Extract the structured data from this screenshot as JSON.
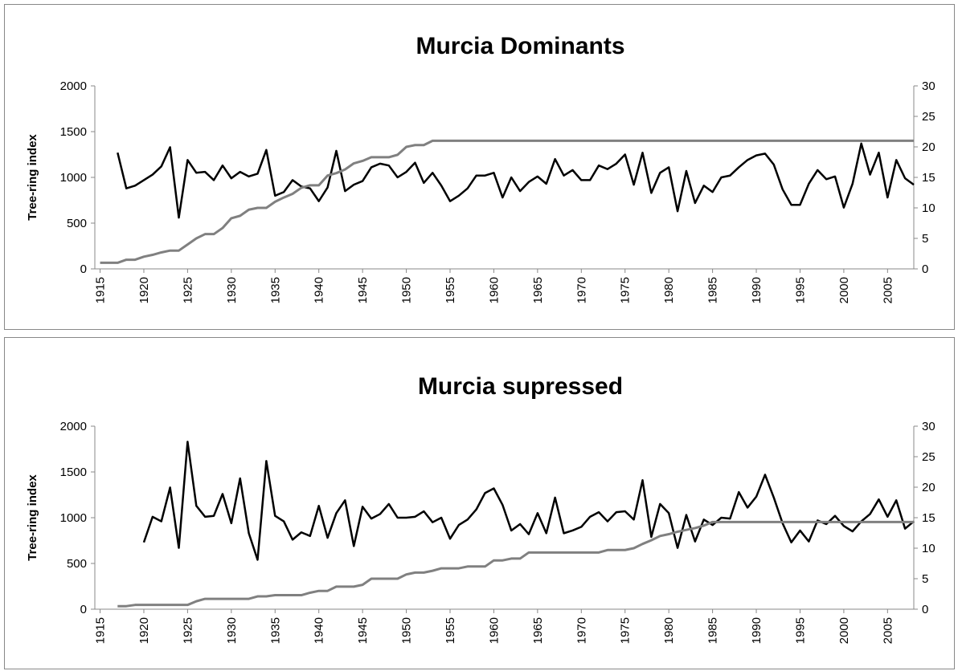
{
  "chart_data": [
    {
      "type": "line",
      "title": "Murcia Dominants",
      "ylabel": "Tree-ring index",
      "x": [
        1915,
        1916,
        1917,
        1918,
        1919,
        1920,
        1921,
        1922,
        1923,
        1924,
        1925,
        1926,
        1927,
        1928,
        1929,
        1930,
        1931,
        1932,
        1933,
        1934,
        1935,
        1936,
        1937,
        1938,
        1939,
        1940,
        1941,
        1942,
        1943,
        1944,
        1945,
        1946,
        1947,
        1948,
        1949,
        1950,
        1951,
        1952,
        1953,
        1954,
        1955,
        1956,
        1957,
        1958,
        1959,
        1960,
        1961,
        1962,
        1963,
        1964,
        1965,
        1966,
        1967,
        1968,
        1969,
        1970,
        1971,
        1972,
        1973,
        1974,
        1975,
        1976,
        1977,
        1978,
        1979,
        1980,
        1981,
        1982,
        1983,
        1984,
        1985,
        1986,
        1987,
        1988,
        1989,
        1990,
        1991,
        1992,
        1993,
        1994,
        1995,
        1996,
        1997,
        1998,
        1999,
        2000,
        2001,
        2002,
        2003,
        2004,
        2005,
        2006,
        2007,
        2008
      ],
      "xlim": [
        1914.4,
        2008
      ],
      "xticks": [
        1915,
        1920,
        1925,
        1930,
        1935,
        1940,
        1945,
        1950,
        1955,
        1960,
        1965,
        1970,
        1975,
        1980,
        1985,
        1990,
        1995,
        2000,
        2005
      ],
      "ylim": [
        0,
        2000
      ],
      "yticks": [
        0,
        500,
        1000,
        1500,
        2000
      ],
      "y2lim": [
        0,
        30
      ],
      "y2ticks": [
        0,
        5,
        10,
        15,
        20,
        25,
        30
      ],
      "series": [
        {
          "color": "#000000",
          "values": [
            null,
            null,
            1270,
            880,
            910,
            970,
            1030,
            1120,
            1330,
            560,
            1190,
            1050,
            1060,
            970,
            1130,
            990,
            1060,
            1010,
            1040,
            1300,
            800,
            840,
            970,
            900,
            880,
            740,
            890,
            1290,
            850,
            920,
            960,
            1110,
            1150,
            1130,
            1000,
            1060,
            1160,
            940,
            1050,
            910,
            740,
            800,
            880,
            1020,
            1020,
            1050,
            780,
            1000,
            850,
            950,
            1010,
            930,
            1200,
            1020,
            1080,
            970,
            970,
            1130,
            1090,
            1150,
            1250,
            920,
            1270,
            830,
            1050,
            1110,
            630,
            1070,
            720,
            910,
            840,
            1000,
            1020,
            1110,
            1190,
            1240,
            1260,
            1140,
            870,
            700,
            700,
            930,
            1080,
            980,
            1010,
            670,
            930,
            1370,
            1030,
            1270,
            780,
            1190,
            990,
            920
          ]
        },
        {
          "color": "#808080",
          "axis": "y2",
          "values": [
            1,
            1,
            1,
            1.5,
            1.5,
            2,
            2.3,
            2.7,
            3,
            3,
            4,
            5,
            5.7,
            5.7,
            6.7,
            8.3,
            8.7,
            9.7,
            10,
            10,
            11,
            11.7,
            12.3,
            13.3,
            13.7,
            13.7,
            15.3,
            15.7,
            16.3,
            17.3,
            17.7,
            18.3,
            18.3,
            18.3,
            18.7,
            20,
            20.3,
            20.3,
            21,
            21,
            21,
            21,
            21,
            21,
            21,
            21,
            21,
            21,
            21,
            21,
            21,
            21,
            21,
            21,
            21,
            21,
            21,
            21,
            21,
            21,
            21,
            21,
            21,
            21,
            21,
            21,
            21,
            21,
            21,
            21,
            21,
            21,
            21,
            21,
            21,
            21,
            21,
            21,
            21,
            21,
            21,
            21,
            21,
            21,
            21,
            21,
            21,
            21,
            21,
            21,
            21,
            21,
            21,
            21
          ]
        }
      ]
    },
    {
      "type": "line",
      "title": "Murcia supressed",
      "ylabel": "Tree-ring index",
      "x": [
        1915,
        1916,
        1917,
        1918,
        1919,
        1920,
        1921,
        1922,
        1923,
        1924,
        1925,
        1926,
        1927,
        1928,
        1929,
        1930,
        1931,
        1932,
        1933,
        1934,
        1935,
        1936,
        1937,
        1938,
        1939,
        1940,
        1941,
        1942,
        1943,
        1944,
        1945,
        1946,
        1947,
        1948,
        1949,
        1950,
        1951,
        1952,
        1953,
        1954,
        1955,
        1956,
        1957,
        1958,
        1959,
        1960,
        1961,
        1962,
        1963,
        1964,
        1965,
        1966,
        1967,
        1968,
        1969,
        1970,
        1971,
        1972,
        1973,
        1974,
        1975,
        1976,
        1977,
        1978,
        1979,
        1980,
        1981,
        1982,
        1983,
        1984,
        1985,
        1986,
        1987,
        1988,
        1989,
        1990,
        1991,
        1992,
        1993,
        1994,
        1995,
        1996,
        1997,
        1998,
        1999,
        2000,
        2001,
        2002,
        2003,
        2004,
        2005,
        2006,
        2007,
        2008
      ],
      "xlim": [
        1914.4,
        2008
      ],
      "xticks": [
        1915,
        1920,
        1925,
        1930,
        1935,
        1940,
        1945,
        1950,
        1955,
        1960,
        1965,
        1970,
        1975,
        1980,
        1985,
        1990,
        1995,
        2000,
        2005
      ],
      "ylim": [
        0,
        2000
      ],
      "yticks": [
        0,
        500,
        1000,
        1500,
        2000
      ],
      "y2lim": [
        0,
        30
      ],
      "y2ticks": [
        0,
        5,
        10,
        15,
        20,
        25,
        30
      ],
      "series": [
        {
          "color": "#000000",
          "values": [
            null,
            null,
            null,
            null,
            null,
            730,
            1010,
            960,
            1330,
            670,
            1830,
            1130,
            1010,
            1020,
            1260,
            940,
            1430,
            830,
            540,
            1620,
            1020,
            960,
            760,
            840,
            800,
            1130,
            780,
            1050,
            1190,
            690,
            1120,
            990,
            1040,
            1150,
            1000,
            1000,
            1010,
            1070,
            950,
            1000,
            770,
            920,
            980,
            1090,
            1270,
            1320,
            1140,
            860,
            930,
            820,
            1050,
            830,
            1220,
            830,
            860,
            900,
            1010,
            1060,
            960,
            1060,
            1070,
            980,
            1410,
            790,
            1150,
            1050,
            670,
            1030,
            740,
            980,
            920,
            1000,
            990,
            1280,
            1110,
            1230,
            1470,
            1220,
            940,
            730,
            860,
            740,
            970,
            930,
            1020,
            910,
            850,
            960,
            1040,
            1200,
            1010,
            1190,
            880,
            960
          ]
        },
        {
          "color": "#808080",
          "axis": "y2",
          "values": [
            null,
            null,
            0.5,
            0.5,
            0.7,
            0.7,
            0.7,
            0.7,
            0.7,
            0.7,
            0.7,
            1.3,
            1.7,
            1.7,
            1.7,
            1.7,
            1.7,
            1.7,
            2.1,
            2.1,
            2.3,
            2.3,
            2.3,
            2.3,
            2.7,
            3,
            3,
            3.7,
            3.7,
            3.7,
            4,
            5,
            5,
            5,
            5,
            5.7,
            6,
            6,
            6.3,
            6.7,
            6.7,
            6.7,
            7,
            7,
            7,
            8,
            8,
            8.3,
            8.3,
            9.3,
            9.3,
            9.3,
            9.3,
            9.3,
            9.3,
            9.3,
            9.3,
            9.3,
            9.7,
            9.7,
            9.7,
            10,
            10.7,
            11.3,
            12,
            12.3,
            12.7,
            13,
            13.3,
            13.7,
            14.3,
            14.3,
            14.3,
            14.3,
            14.3,
            14.3,
            14.3,
            14.3,
            14.3,
            14.3,
            14.3,
            14.3,
            14.3,
            14.3,
            14.3,
            14.3,
            14.3,
            14.3,
            14.3,
            14.3,
            14.3,
            14.3,
            14.3,
            14.3
          ]
        }
      ]
    }
  ]
}
